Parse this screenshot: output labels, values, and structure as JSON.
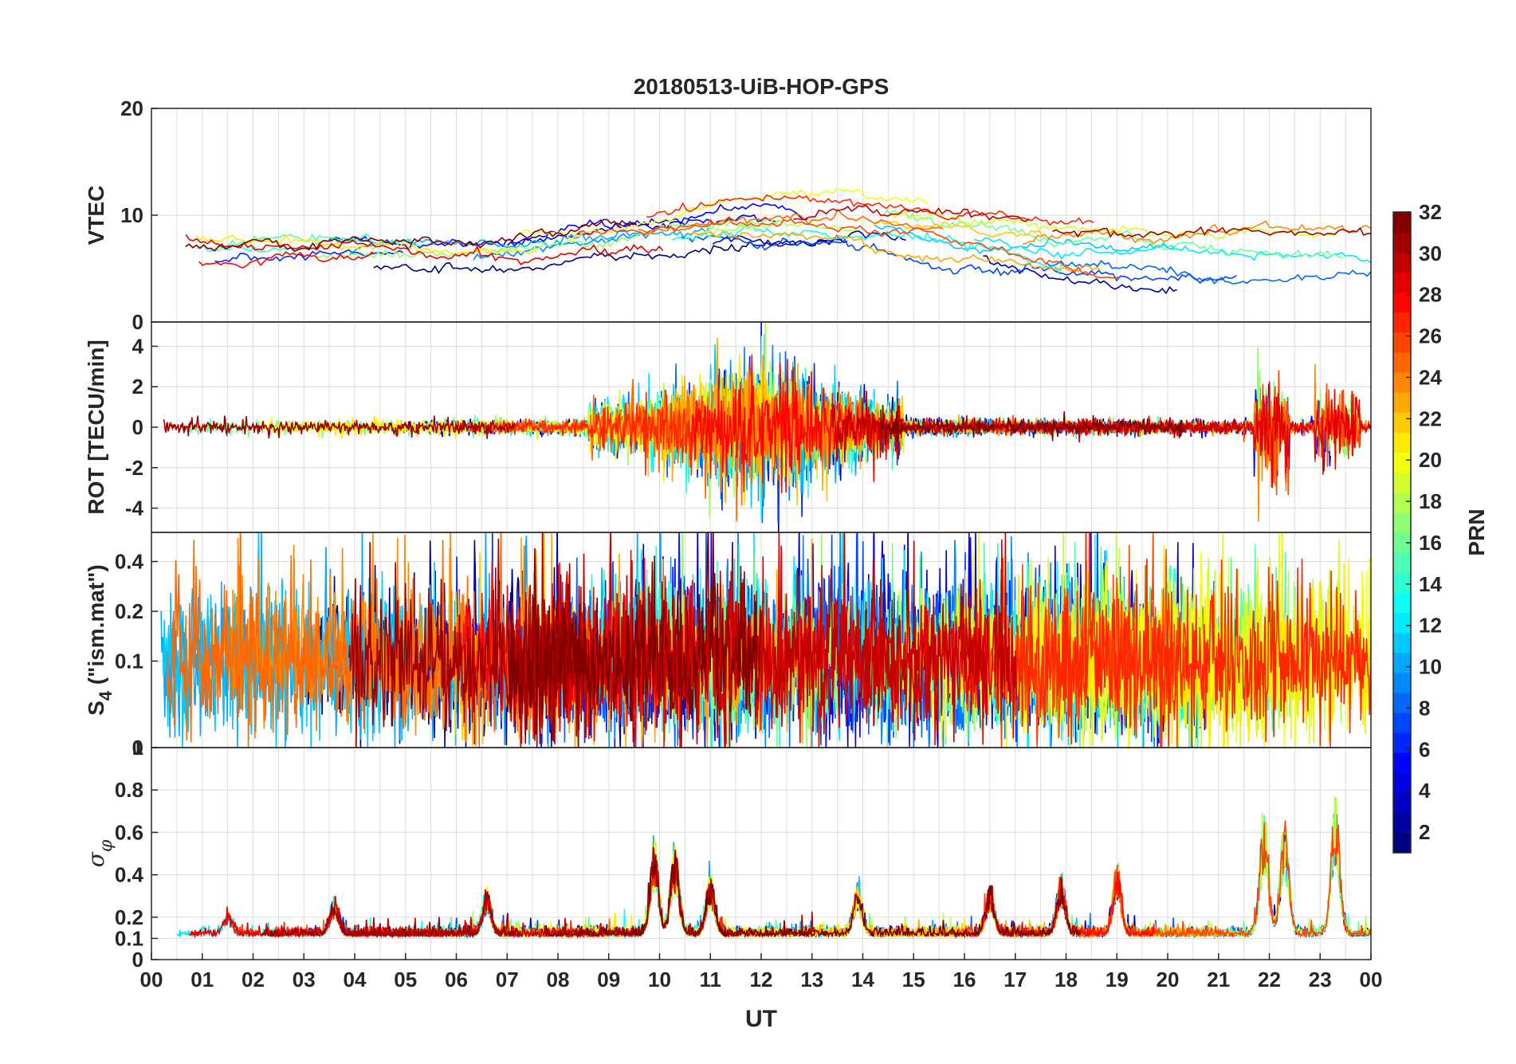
{
  "chart_data": {
    "type": "line",
    "title": "20180513-UiB-HOP-GPS",
    "xlabel": "UT",
    "x_tick_labels": [
      "00",
      "01",
      "02",
      "03",
      "04",
      "05",
      "06",
      "07",
      "08",
      "09",
      "10",
      "11",
      "12",
      "13",
      "14",
      "15",
      "16",
      "17",
      "18",
      "19",
      "20",
      "21",
      "22",
      "23",
      "00"
    ],
    "xlim": [
      0,
      24
    ],
    "panels": [
      {
        "ylabel": "VTEC",
        "ylim": [
          0,
          20
        ],
        "y_tick_labels": [
          "0",
          "10",
          "20"
        ],
        "grid": true
      },
      {
        "ylabel": "ROT [TECU/min]",
        "ylim": [
          -5.2,
          5.2
        ],
        "y_tick_labels": [
          "-4",
          "-2",
          "0",
          "2",
          "4"
        ],
        "grid": true
      },
      {
        "ylabel": "S4 (\"ism.mat\")",
        "ylabel_main": "S",
        "ylabel_sub": "4",
        "ylabel_rest": " (\"ism.mat\")",
        "ylim": [
          0.03,
          0.6
        ],
        "y_tick_labels": [
          "0",
          "0.1",
          "0.2",
          "0.4"
        ],
        "grid": true
      },
      {
        "ylabel": "σφ",
        "ylabel_main": "σ",
        "ylabel_sub": "φ",
        "ylim": [
          0,
          1
        ],
        "y_tick_labels": [
          "0",
          "0.1",
          "0.2",
          "0.4",
          "0.6",
          "0.8",
          "1"
        ],
        "grid": true
      }
    ],
    "colorbar": {
      "label": "PRN",
      "range": [
        1,
        32
      ],
      "tick_labels": [
        "2",
        "4",
        "6",
        "8",
        "10",
        "12",
        "14",
        "16",
        "18",
        "20",
        "22",
        "24",
        "26",
        "28",
        "30",
        "32"
      ],
      "colormap": "jet"
    },
    "series_note": "one trace per GPS PRN 1-32, colored by PRN via the jet colormap"
  }
}
